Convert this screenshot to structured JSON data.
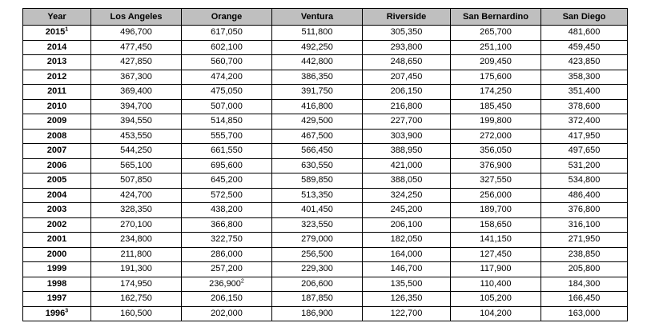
{
  "table": {
    "headers": [
      "Year",
      "Los Angeles",
      "Orange",
      "Ventura",
      "Riverside",
      "San Bernardino",
      "San Diego"
    ],
    "rows": [
      {
        "year": "2015",
        "year_note": "1",
        "la": "496,700",
        "orange": "617,050",
        "orange_note": "",
        "ventura": "511,800",
        "riverside": "305,350",
        "sb": "265,700",
        "sd": "481,600"
      },
      {
        "year": "2014",
        "year_note": "",
        "la": "477,450",
        "orange": "602,100",
        "orange_note": "",
        "ventura": "492,250",
        "riverside": "293,800",
        "sb": "251,100",
        "sd": "459,450"
      },
      {
        "year": "2013",
        "year_note": "",
        "la": "427,850",
        "orange": "560,700",
        "orange_note": "",
        "ventura": "442,800",
        "riverside": "248,650",
        "sb": "209,450",
        "sd": "423,850"
      },
      {
        "year": "2012",
        "year_note": "",
        "la": "367,300",
        "orange": "474,200",
        "orange_note": "",
        "ventura": "386,350",
        "riverside": "207,450",
        "sb": "175,600",
        "sd": "358,300"
      },
      {
        "year": "2011",
        "year_note": "",
        "la": "369,400",
        "orange": "475,050",
        "orange_note": "",
        "ventura": "391,750",
        "riverside": "206,150",
        "sb": "174,250",
        "sd": "351,400"
      },
      {
        "year": "2010",
        "year_note": "",
        "la": "394,700",
        "orange": "507,000",
        "orange_note": "",
        "ventura": "416,800",
        "riverside": "216,800",
        "sb": "185,450",
        "sd": "378,600"
      },
      {
        "year": "2009",
        "year_note": "",
        "la": "394,550",
        "orange": "514,850",
        "orange_note": "",
        "ventura": "429,500",
        "riverside": "227,700",
        "sb": "199,800",
        "sd": "372,400"
      },
      {
        "year": "2008",
        "year_note": "",
        "la": "453,550",
        "orange": "555,700",
        "orange_note": "",
        "ventura": "467,500",
        "riverside": "303,900",
        "sb": "272,000",
        "sd": "417,950"
      },
      {
        "year": "2007",
        "year_note": "",
        "la": "544,250",
        "orange": "661,550",
        "orange_note": "",
        "ventura": "566,450",
        "riverside": "388,950",
        "sb": "356,050",
        "sd": "497,650"
      },
      {
        "year": "2006",
        "year_note": "",
        "la": "565,100",
        "orange": "695,600",
        "orange_note": "",
        "ventura": "630,550",
        "riverside": "421,000",
        "sb": "376,900",
        "sd": "531,200"
      },
      {
        "year": "2005",
        "year_note": "",
        "la": "507,850",
        "orange": "645,200",
        "orange_note": "",
        "ventura": "589,850",
        "riverside": "388,050",
        "sb": "327,550",
        "sd": "534,800"
      },
      {
        "year": "2004",
        "year_note": "",
        "la": "424,700",
        "orange": "572,500",
        "orange_note": "",
        "ventura": "513,350",
        "riverside": "324,250",
        "sb": "256,000",
        "sd": "486,400"
      },
      {
        "year": "2003",
        "year_note": "",
        "la": "328,350",
        "orange": "438,200",
        "orange_note": "",
        "ventura": "401,450",
        "riverside": "245,200",
        "sb": "189,700",
        "sd": "376,800"
      },
      {
        "year": "2002",
        "year_note": "",
        "la": "270,100",
        "orange": "366,800",
        "orange_note": "",
        "ventura": "323,550",
        "riverside": "206,100",
        "sb": "158,650",
        "sd": "316,100"
      },
      {
        "year": "2001",
        "year_note": "",
        "la": "234,800",
        "orange": "322,750",
        "orange_note": "",
        "ventura": "279,000",
        "riverside": "182,050",
        "sb": "141,150",
        "sd": "271,950"
      },
      {
        "year": "2000",
        "year_note": "",
        "la": "211,800",
        "orange": "286,000",
        "orange_note": "",
        "ventura": "256,500",
        "riverside": "164,000",
        "sb": "127,450",
        "sd": "238,850"
      },
      {
        "year": "1999",
        "year_note": "",
        "la": "191,300",
        "orange": "257,200",
        "orange_note": "",
        "ventura": "229,300",
        "riverside": "146,700",
        "sb": "117,900",
        "sd": "205,800"
      },
      {
        "year": "1998",
        "year_note": "",
        "la": "174,950",
        "orange": "236,900",
        "orange_note": "2",
        "ventura": "206,600",
        "riverside": "135,500",
        "sb": "110,400",
        "sd": "184,300"
      },
      {
        "year": "1997",
        "year_note": "",
        "la": "162,750",
        "orange": "206,150",
        "orange_note": "",
        "ventura": "187,850",
        "riverside": "126,350",
        "sb": "105,200",
        "sd": "166,450"
      },
      {
        "year": "1996",
        "year_note": "3",
        "la": "160,500",
        "orange": "202,000",
        "orange_note": "",
        "ventura": "186,900",
        "riverside": "122,700",
        "sb": "104,200",
        "sd": "163,000"
      }
    ]
  }
}
